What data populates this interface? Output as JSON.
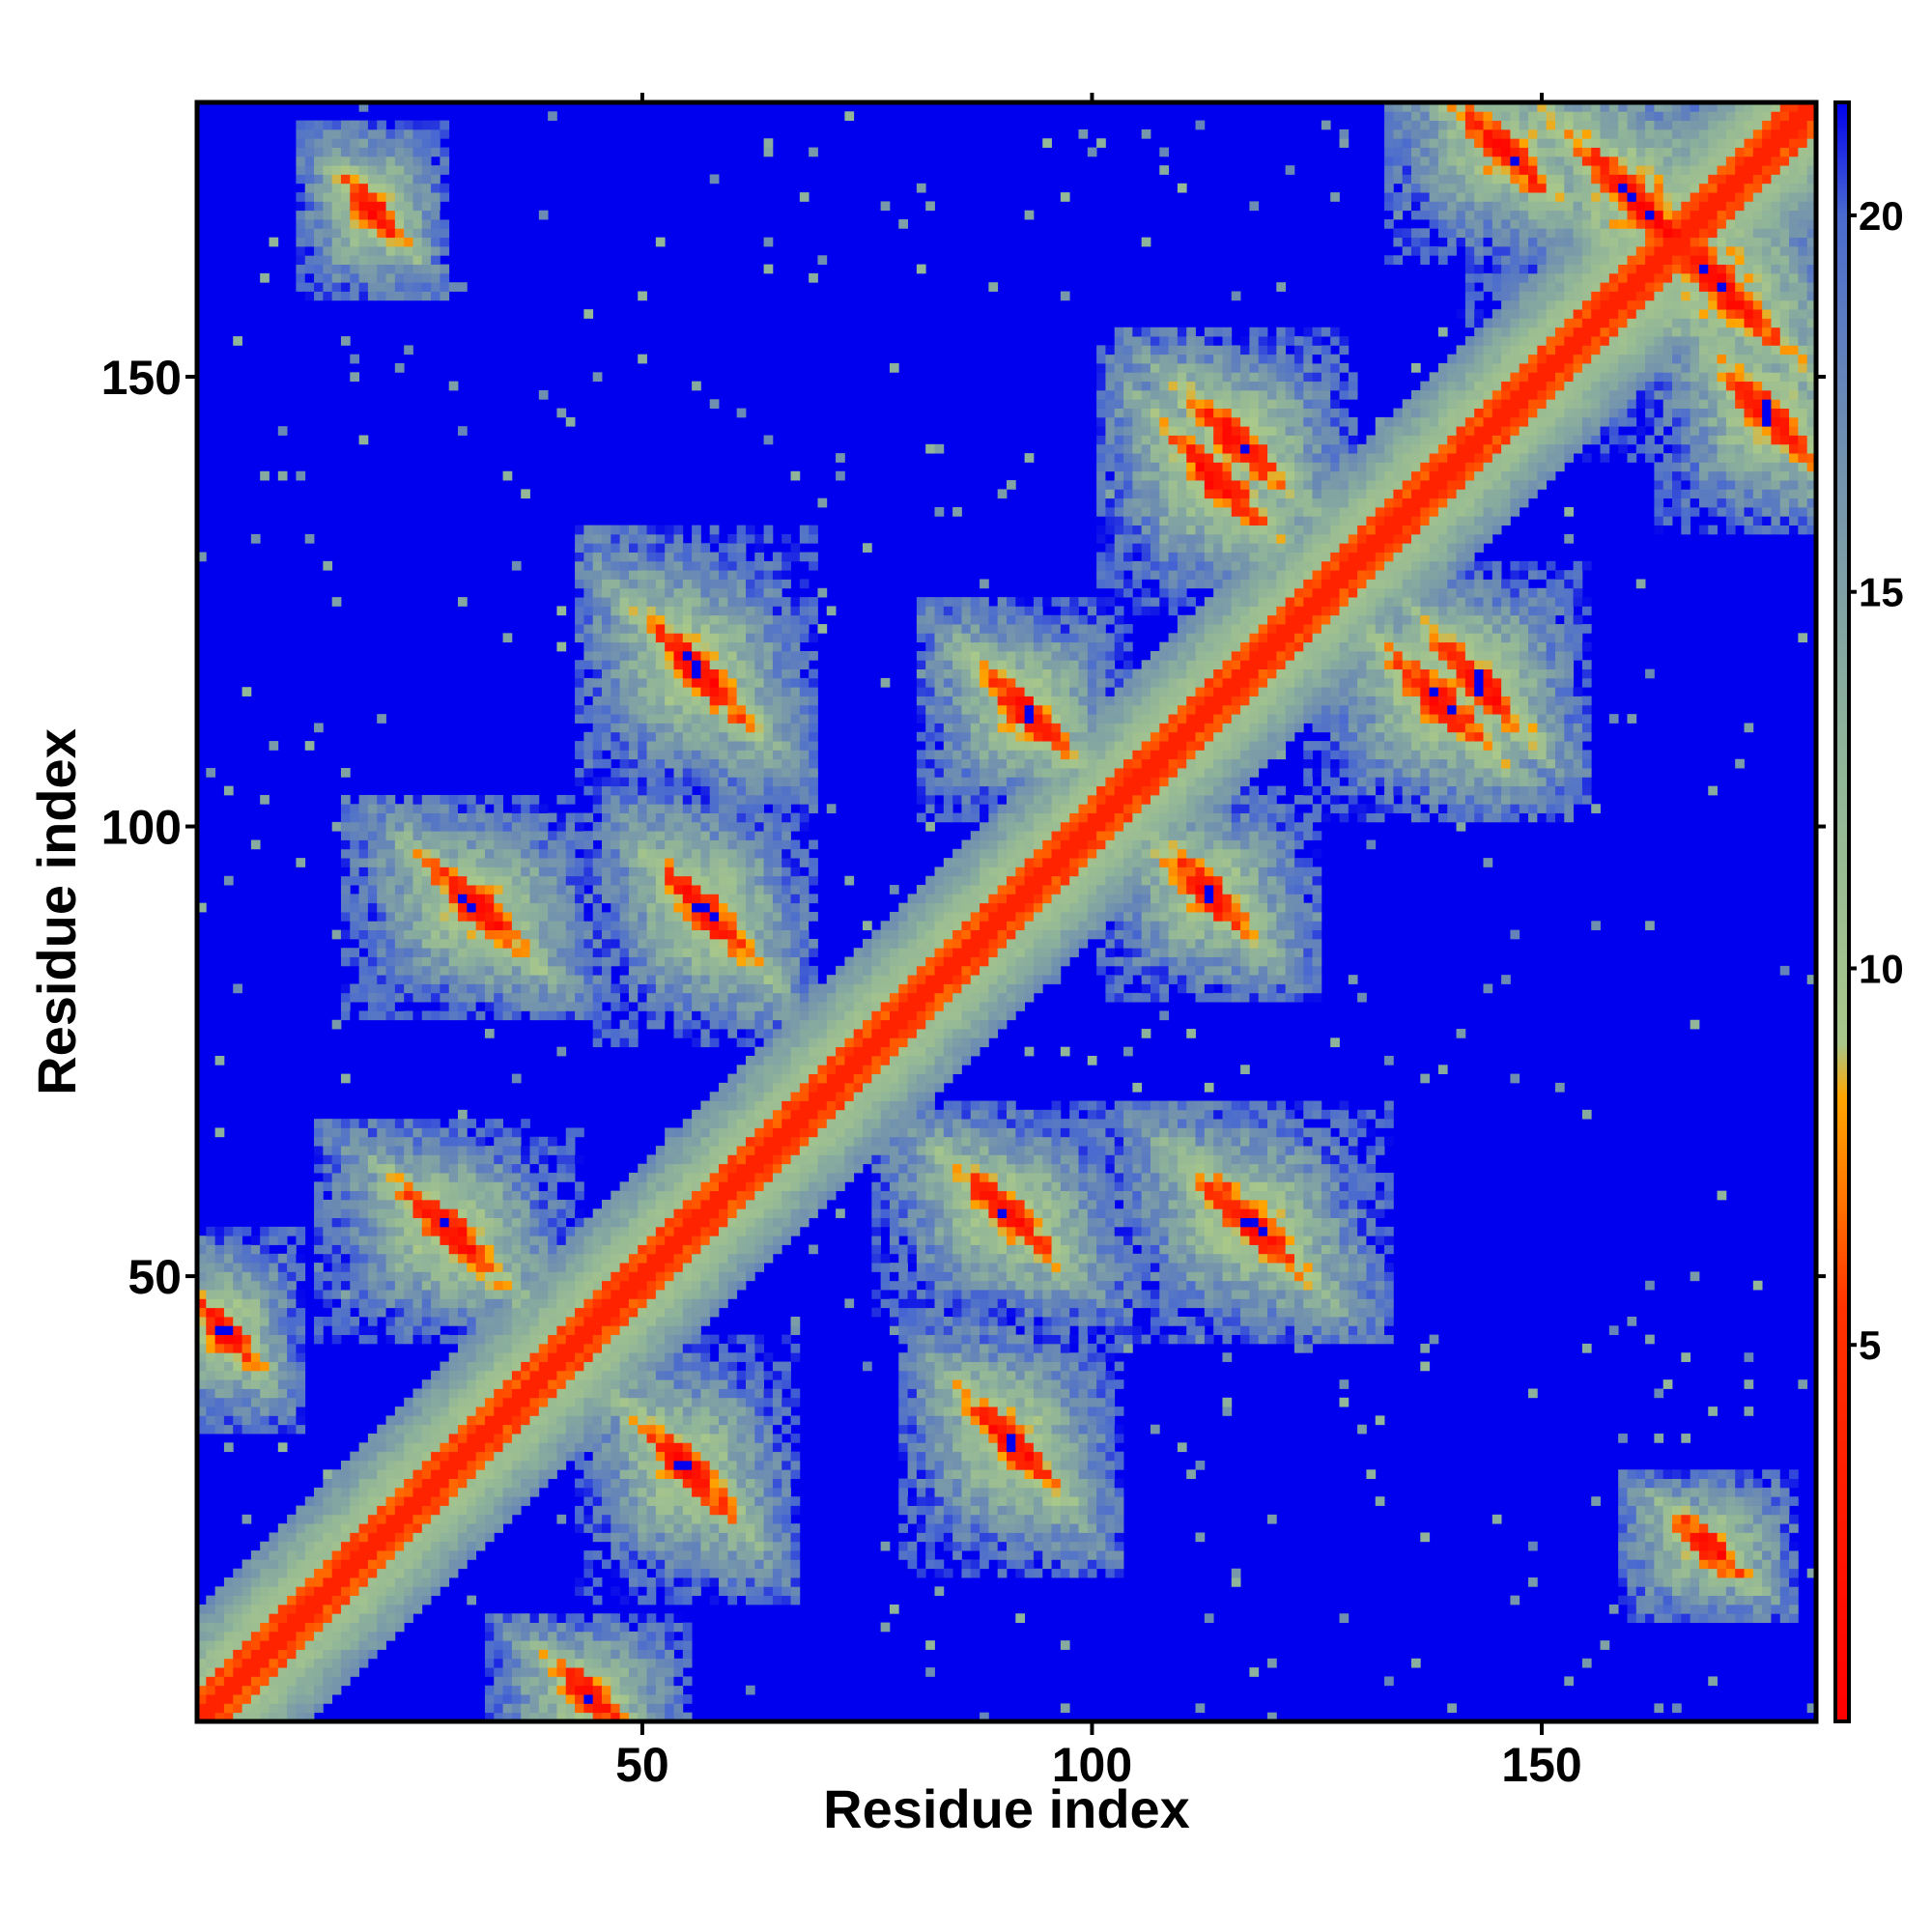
{
  "chart_data": {
    "type": "heatmap",
    "title": "",
    "xlabel": "Residue index",
    "ylabel": "Residue index",
    "n_residues": 180,
    "x_range": [
      1,
      180
    ],
    "y_range": [
      1,
      180
    ],
    "x_ticks": [
      50,
      100,
      150
    ],
    "y_ticks": [
      50,
      100,
      150
    ],
    "colorbar": {
      "ticks": [
        5,
        10,
        15,
        20
      ],
      "range": [
        0,
        21.5
      ],
      "stops": [
        {
          "value": 0,
          "color": "#ff0000"
        },
        {
          "value": 5.5,
          "color": "#ff3300"
        },
        {
          "value": 7.0,
          "color": "#ff7700"
        },
        {
          "value": 8.3,
          "color": "#ffa500"
        },
        {
          "value": 9.0,
          "color": "#a9c88a"
        },
        {
          "value": 13.0,
          "color": "#8fb39a"
        },
        {
          "value": 17.0,
          "color": "#6f8fb0"
        },
        {
          "value": 20.0,
          "color": "#4a6ad0"
        },
        {
          "value": 21.5,
          "color": "#0000ee"
        }
      ],
      "far_color": "#0000ee",
      "cutoff": 21.5
    },
    "secondary_structure_contacts": [
      {
        "type": "helix",
        "start": 1,
        "end": 180,
        "note": "main diagonal band"
      },
      {
        "type": "antiparallel",
        "i": [
          22,
          35
        ],
        "j": [
          50,
          60
        ]
      },
      {
        "type": "antiparallel",
        "i": [
          25,
          38
        ],
        "j": [
          86,
          96
        ]
      },
      {
        "type": "antiparallel",
        "i": [
          52,
          62
        ],
        "j": [
          84,
          97
        ]
      },
      {
        "type": "antiparallel",
        "i": [
          50,
          62
        ],
        "j": [
          110,
          125
        ]
      },
      {
        "type": "antiparallel",
        "i": [
          88,
          97
        ],
        "j": [
          108,
          118
        ]
      },
      {
        "type": "antiparallel",
        "i": [
          108,
          120
        ],
        "j": [
          132,
          145
        ]
      },
      {
        "type": "antiparallel",
        "i": [
          138,
          148
        ],
        "j": [
          110,
          122
        ]
      },
      {
        "type": "antiparallel",
        "i": [
          150,
          172
        ],
        "j": [
          158,
          180
        ]
      },
      {
        "type": "antiparallel",
        "i": [
          170,
          180
        ],
        "j": [
          140,
          152
        ]
      },
      {
        "type": "antiparallel",
        "i": [
          1,
          6
        ],
        "j": [
          40,
          48
        ]
      },
      {
        "type": "antiparallel",
        "i": [
          18,
          22
        ],
        "j": [
          165,
          172
        ]
      }
    ]
  }
}
